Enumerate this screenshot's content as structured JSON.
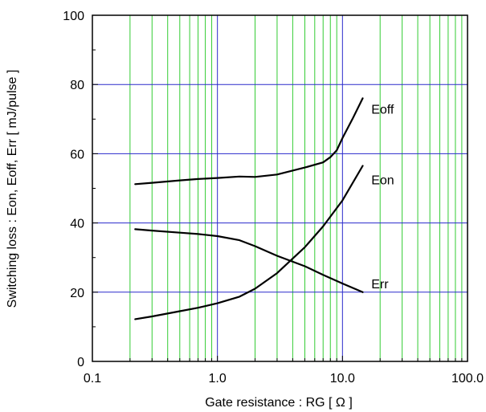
{
  "chart_data": {
    "type": "line",
    "title": "",
    "xlabel": "Gate resistance : RG [ Ω ]",
    "ylabel": "Switching loss : Eon, Eoff, Err [ mJ/pulse ]",
    "x_scale": "log",
    "xlim": [
      0.1,
      100
    ],
    "ylim": [
      0,
      100
    ],
    "x_ticks": [
      0.1,
      1,
      10,
      100
    ],
    "x_tick_labels": [
      "0.1",
      "1.0",
      "10.0",
      "100.0"
    ],
    "y_ticks": [
      0,
      20,
      40,
      60,
      80,
      100
    ],
    "y_tick_labels": [
      "0",
      "20",
      "40",
      "60",
      "80",
      "100"
    ],
    "grid": true,
    "colors": {
      "major_grid": "#2a2acc",
      "minor_grid": "#33cc33",
      "series": "#000000",
      "frame": "#000000"
    },
    "series": [
      {
        "name": "Eoff",
        "x": [
          0.22,
          0.3,
          0.5,
          0.7,
          1.0,
          1.5,
          2.0,
          3.0,
          5.0,
          7.0,
          8.0,
          9.0,
          10.0,
          12.0,
          14.5
        ],
        "y": [
          51.2,
          51.6,
          52.3,
          52.7,
          53.0,
          53.4,
          53.3,
          54.0,
          56.0,
          57.5,
          59.0,
          61.0,
          64.5,
          70.0,
          76.0
        ]
      },
      {
        "name": "Eon",
        "x": [
          0.22,
          0.3,
          0.5,
          0.7,
          1.0,
          1.5,
          2.0,
          3.0,
          5.0,
          7.0,
          10.0,
          14.5
        ],
        "y": [
          12.2,
          13.0,
          14.5,
          15.5,
          16.8,
          18.7,
          21.0,
          25.5,
          33.0,
          39.0,
          46.5,
          56.5
        ]
      },
      {
        "name": "Err",
        "x": [
          0.22,
          0.3,
          0.5,
          0.7,
          1.0,
          1.5,
          2.0,
          3.0,
          5.0,
          7.0,
          10.0,
          14.5
        ],
        "y": [
          38.2,
          37.8,
          37.2,
          36.8,
          36.2,
          35.0,
          33.3,
          30.5,
          27.5,
          25.0,
          22.5,
          20.0
        ]
      }
    ],
    "series_labels": [
      {
        "name": "Eoff",
        "text": "Eoff",
        "x": 17,
        "y": 73
      },
      {
        "name": "Eon",
        "text": "Eon",
        "x": 17,
        "y": 52.5
      },
      {
        "name": "Err",
        "text": "Err",
        "x": 17,
        "y": 22.5
      }
    ]
  }
}
